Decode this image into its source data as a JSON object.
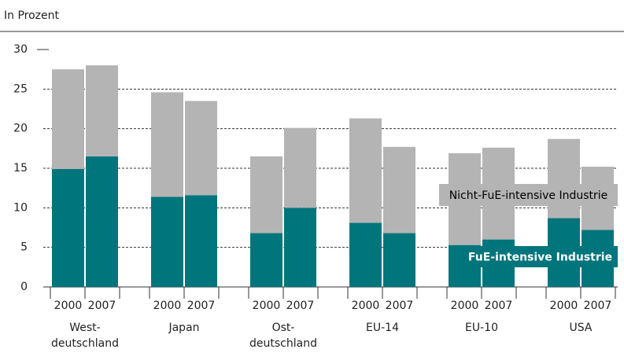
{
  "chart_data": {
    "type": "stacked_bar",
    "subtitle": "In Prozent",
    "categories": [
      "2000",
      "2007",
      "2000",
      "2007",
      "2000",
      "2007",
      "2000",
      "2007",
      "2000",
      "2007",
      "2000",
      "2007"
    ],
    "groups": [
      [
        "West-",
        "deutschland"
      ],
      [
        "Japan"
      ],
      [
        "Ost-",
        "deutschland"
      ],
      [
        "EU-14"
      ],
      [
        "EU-10"
      ],
      [
        "USA"
      ]
    ],
    "series": [
      {
        "name": "FuE-intensive Industrie",
        "color": "#00757c",
        "label_color": "#ffffff",
        "values": [
          14.9,
          16.5,
          11.4,
          11.6,
          6.8,
          10.0,
          8.1,
          6.8,
          5.3,
          6.0,
          8.7,
          7.2
        ]
      },
      {
        "name": "Nicht-FuE-intensive Industrie",
        "color": "#b4b4b4",
        "label_color": "#000000",
        "values": [
          12.6,
          11.5,
          13.2,
          11.9,
          9.7,
          10.1,
          13.2,
          10.9,
          11.6,
          11.6,
          10.0,
          8.0
        ]
      }
    ],
    "ylim": [
      0,
      30
    ],
    "yticks": [
      0,
      5,
      10,
      15,
      20,
      25,
      30
    ],
    "grid": true
  }
}
